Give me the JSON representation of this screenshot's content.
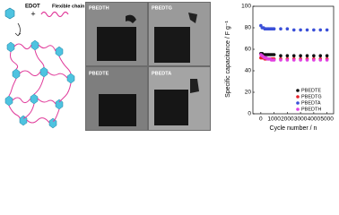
{
  "diagram": {
    "monomer": "EDOT",
    "plus": "+",
    "chain": "Flexible chain"
  },
  "photos": [
    "PBEDTH",
    "PBEDTG",
    "PBEDTE",
    "PBEDTA"
  ],
  "chart_data": {
    "type": "scatter",
    "xlabel": "Cycle number / n",
    "ylabel": "Specific capacitance / F g⁻¹",
    "x": [
      0,
      100,
      200,
      300,
      400,
      500,
      600,
      700,
      800,
      900,
      1000,
      1500,
      2000,
      2500,
      3000,
      3500,
      4000,
      4500,
      5000
    ],
    "series": [
      {
        "name": "PBEDTE",
        "color": "#111111",
        "values": [
          56,
          56,
          55,
          55,
          55,
          55,
          55,
          55,
          55,
          55,
          55,
          54,
          54,
          54,
          54,
          54,
          54,
          54,
          54
        ]
      },
      {
        "name": "PBEDTG",
        "color": "#e8202a",
        "values": [
          52,
          52,
          52,
          51,
          51,
          51,
          51,
          51,
          51,
          51,
          51,
          51,
          51,
          51,
          51,
          51,
          51,
          51,
          51
        ]
      },
      {
        "name": "PBEDTA",
        "color": "#3a4fd8",
        "values": [
          82,
          80,
          80,
          79,
          79,
          79,
          79,
          79,
          79,
          79,
          79,
          79,
          79,
          78,
          78,
          78,
          78,
          78,
          78
        ]
      },
      {
        "name": "PBEDTH",
        "color": "#e040e0",
        "values": [
          55,
          54,
          53,
          52,
          52,
          51,
          51,
          51,
          50,
          50,
          50,
          50,
          50,
          50,
          50,
          50,
          50,
          50,
          50
        ]
      }
    ],
    "xlim": [
      -600,
      5500
    ],
    "xticks": [
      0,
      1000,
      2000,
      3000,
      4000,
      5000
    ],
    "ylim": [
      0,
      100
    ],
    "yticks": [
      0,
      20,
      40,
      60,
      80,
      100
    ],
    "legend": "lower right"
  }
}
